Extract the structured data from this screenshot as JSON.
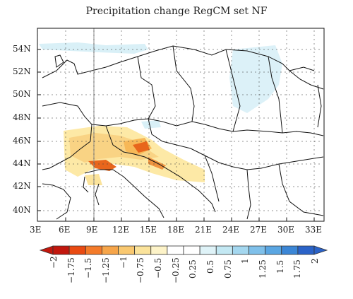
{
  "title": "Precipitation change RegCM set NF",
  "y_ticks": [
    "54N",
    "52N",
    "50N",
    "48N",
    "46N",
    "44N",
    "42N",
    "40N"
  ],
  "x_ticks": [
    "3E",
    "6E",
    "9E",
    "12E",
    "15E",
    "18E",
    "21E",
    "24E",
    "27E",
    "30E",
    "33E"
  ],
  "colorbar": {
    "labels": [
      "−2",
      "−1.75",
      "−1.5",
      "−1.25",
      "−1",
      "−0.75",
      "−0.5",
      "−0.25",
      "0.25",
      "0.5",
      "0.75",
      "1",
      "1.25",
      "1.5",
      "1.75",
      "2"
    ],
    "colors": [
      "#c2170d",
      "#e94a12",
      "#f47b2a",
      "#f6a54a",
      "#f9c870",
      "#fbe39b",
      "#fdf3c8",
      "#ffffff",
      "#ffffff",
      "#dff3f8",
      "#c3e8f3",
      "#a4d7ef",
      "#7fc0ea",
      "#5aa6e2",
      "#3b86d6",
      "#2b63c8"
    ]
  },
  "colors": {
    "coast": "#111111",
    "dry_light": "#fde9a6",
    "dry_mid": "#f7c66a",
    "dry_strong": "#e8661c",
    "wet_light": "#d9f0f7"
  }
}
